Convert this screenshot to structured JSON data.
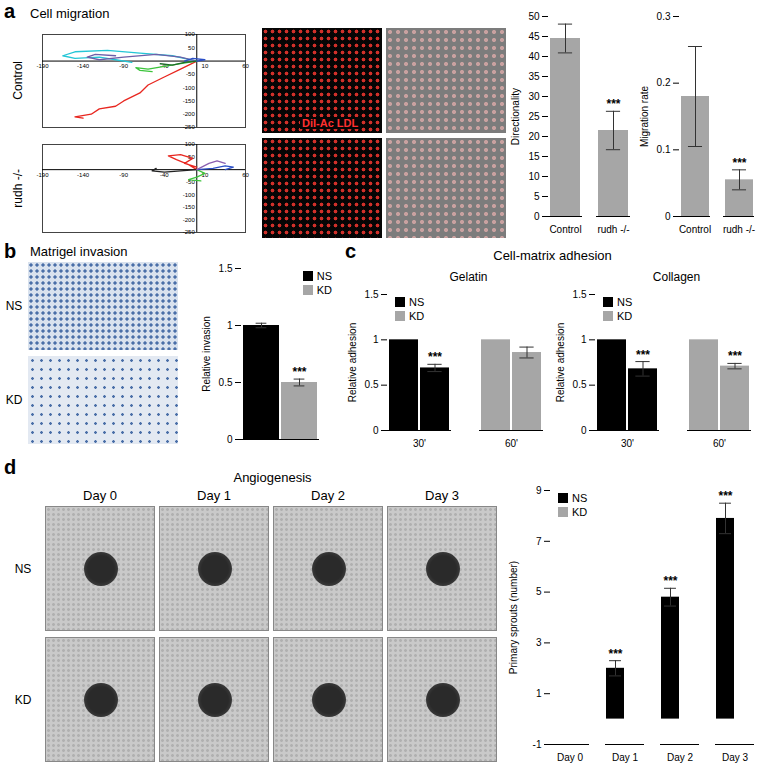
{
  "figure": {
    "panel_a": {
      "letter": "a",
      "title": "Cell migration",
      "row_labels": [
        "Control",
        "rudh -/-"
      ],
      "image_label": "DiI-Ac LDL"
    },
    "panel_b": {
      "letter": "b",
      "title": "Matrigel invasion",
      "row_labels": [
        "NS",
        "KD"
      ]
    },
    "panel_c": {
      "letter": "c",
      "title": "Cell-matrix adhesion"
    },
    "panel_d": {
      "letter": "d",
      "title": "Angiogenesis",
      "column_labels": [
        "Day 0",
        "Day 1",
        "Day 2",
        "Day 3"
      ],
      "row_labels": [
        "NS",
        "KD"
      ]
    }
  },
  "chart_data": [
    {
      "type": "line",
      "xlim": [
        -190,
        60
      ],
      "xticks": [
        -190,
        -140,
        -90,
        -40,
        10,
        60
      ],
      "ylim": [
        -250,
        100
      ],
      "yticks": [
        100,
        50,
        -50,
        -100,
        -150,
        -200,
        -250
      ],
      "series": [
        {
          "color": "#e8261f",
          "x": [
            0,
            -20,
            -40,
            -60,
            -70,
            -90,
            -100,
            -120,
            -130,
            -150,
            -140
          ],
          "y": [
            0,
            -30,
            -60,
            -90,
            -120,
            -150,
            -170,
            -180,
            -200,
            -210,
            -215
          ]
        },
        {
          "color": "#25c6d6",
          "x": [
            0,
            -30,
            -70,
            -110,
            -150,
            -165,
            -150,
            -120,
            -100,
            -80
          ],
          "y": [
            0,
            20,
            30,
            40,
            35,
            20,
            10,
            15,
            5,
            -5
          ]
        },
        {
          "color": "#6d5fa8",
          "x": [
            0,
            -20,
            -50,
            -90,
            -120,
            -135,
            -125,
            -100
          ],
          "y": [
            0,
            15,
            25,
            15,
            5,
            15,
            25,
            20
          ]
        },
        {
          "color": "#3cc43c",
          "x": [
            0,
            -20,
            -40,
            -60,
            -75,
            -70,
            -55
          ],
          "y": [
            0,
            -10,
            -20,
            -30,
            -25,
            -35,
            -40
          ]
        },
        {
          "color": "#1f6b2a",
          "x": [
            0,
            -15,
            -30,
            -45
          ],
          "y": [
            0,
            -5,
            -15,
            -10
          ]
        },
        {
          "color": "#2b4fc7",
          "x": [
            0,
            10,
            -5,
            -15
          ],
          "y": [
            0,
            5,
            10,
            0
          ]
        }
      ]
    },
    {
      "type": "line",
      "xlim": [
        -190,
        60
      ],
      "xticks": [
        -190,
        -140,
        -90,
        -40,
        10,
        60
      ],
      "ylim": [
        -250,
        100
      ],
      "yticks": [
        100,
        50,
        -50,
        -100,
        -150,
        -200,
        -250
      ],
      "series": [
        {
          "color": "#e8261f",
          "x": [
            0,
            -10,
            -25,
            -35,
            -20,
            -5,
            -15,
            0
          ],
          "y": [
            0,
            20,
            40,
            55,
            60,
            45,
            25,
            10
          ]
        },
        {
          "color": "#3cc43c",
          "x": [
            0,
            10,
            0,
            -10,
            5
          ],
          "y": [
            0,
            -15,
            -30,
            -40,
            -45
          ]
        },
        {
          "color": "#2b4fc7",
          "x": [
            0,
            20,
            35,
            45,
            35
          ],
          "y": [
            0,
            5,
            15,
            10,
            0
          ]
        },
        {
          "color": "#222222",
          "x": [
            0,
            -20,
            -40,
            -55,
            -50
          ],
          "y": [
            0,
            -5,
            -10,
            -5,
            5
          ]
        },
        {
          "color": "#8a5fb0",
          "x": [
            0,
            15,
            25,
            35
          ],
          "y": [
            0,
            25,
            35,
            25
          ]
        }
      ]
    },
    {
      "type": "bar",
      "y_label": "Directionality",
      "categories": [
        "Control",
        "rudh -/-"
      ],
      "values": [
        44.5,
        21.5
      ],
      "errors": [
        3.6,
        4.8
      ],
      "color": "#a6a6a6",
      "ylim": [
        0,
        50
      ],
      "yticks": [
        0,
        5,
        10,
        15,
        20,
        25,
        30,
        35,
        40,
        45,
        50
      ],
      "annotations": [
        {
          "index": 1,
          "text": "***"
        }
      ]
    },
    {
      "type": "bar",
      "y_label": "Migration rate",
      "categories": [
        "Control",
        "rudh -/-"
      ],
      "values": [
        0.18,
        0.055
      ],
      "errors": [
        0.075,
        0.015
      ],
      "color": "#a6a6a6",
      "ylim": [
        0,
        0.3
      ],
      "yticks": [
        0,
        0.1,
        0.2,
        0.3
      ],
      "annotations": [
        {
          "index": 1,
          "text": "***"
        }
      ]
    },
    {
      "type": "bar",
      "y_label": "Relative invasion",
      "categories": [
        null
      ],
      "series": [
        {
          "name": "NS",
          "color": "#000000",
          "values": [
            1
          ],
          "errors": [
            0.02
          ]
        },
        {
          "name": "KD",
          "color": "#a6a6a6",
          "values": [
            0.5
          ],
          "errors": [
            0.03
          ]
        }
      ],
      "ylim": [
        0,
        1.5
      ],
      "yticks": [
        0,
        0.5,
        1,
        1.5
      ],
      "legend": "top-right",
      "annotations": [
        {
          "series": "KD",
          "index": 0,
          "text": "***"
        }
      ]
    },
    {
      "type": "bar",
      "title": "Gelatin",
      "y_label": "Relative adhesion",
      "categories": [
        "30'",
        "60'"
      ],
      "series": [
        {
          "name": "NS",
          "color": "#000000",
          "colors": [
            "#000000",
            "#a6a6a6"
          ],
          "values": [
            1,
            1
          ],
          "errors": [
            0,
            0
          ]
        },
        {
          "name": "KD",
          "color": "#a6a6a6",
          "colors": [
            "#000000",
            "#a6a6a6"
          ],
          "values": [
            0.69,
            0.86
          ],
          "errors": [
            0.04,
            0.06
          ]
        }
      ],
      "ylim": [
        0,
        1.5
      ],
      "yticks": [
        0,
        0.5,
        1,
        1.5
      ],
      "legend": "top-left",
      "annotations": [
        {
          "series": "KD",
          "index": 0,
          "text": "***"
        }
      ]
    },
    {
      "type": "bar",
      "title": "Collagen",
      "y_label": "Relative adhesion",
      "categories": [
        "30'",
        "60'"
      ],
      "series": [
        {
          "name": "NS",
          "color": "#000000",
          "colors": [
            "#000000",
            "#a6a6a6"
          ],
          "values": [
            1,
            1
          ],
          "errors": [
            0,
            0
          ]
        },
        {
          "name": "KD",
          "color": "#a6a6a6",
          "colors": [
            "#000000",
            "#a6a6a6"
          ],
          "values": [
            0.68,
            0.71
          ],
          "errors": [
            0.08,
            0.03
          ]
        }
      ],
      "ylim": [
        0,
        1.5
      ],
      "yticks": [
        0,
        0.5,
        1,
        1.5
      ],
      "legend": "top-left",
      "annotations": [
        {
          "series": "KD",
          "index": 0,
          "text": "***"
        },
        {
          "series": "KD",
          "index": 1,
          "text": "***"
        }
      ]
    },
    {
      "type": "bar",
      "y_label": "Primary sprouts (number)",
      "categories": [
        "Day 0",
        "Day 1",
        "Day 2",
        "Day 3"
      ],
      "series": [
        {
          "name": "NS",
          "color": "#000000",
          "values": [
            0,
            2,
            4.8,
            7.9
          ],
          "errors": [
            0,
            0.3,
            0.35,
            0.6
          ]
        },
        {
          "name": "KD",
          "color": "#a6a6a6",
          "values": [
            0,
            0,
            0,
            0
          ],
          "errors": [
            0,
            0,
            0,
            0
          ]
        }
      ],
      "ylim": [
        -1,
        9
      ],
      "yticks": [
        -1,
        1,
        3,
        5,
        7,
        9
      ],
      "legend": "top-left",
      "annotations": [
        {
          "series": "NS",
          "index": 1,
          "text": "***"
        },
        {
          "series": "NS",
          "index": 2,
          "text": "***"
        },
        {
          "series": "NS",
          "index": 3,
          "text": "***"
        }
      ]
    }
  ]
}
